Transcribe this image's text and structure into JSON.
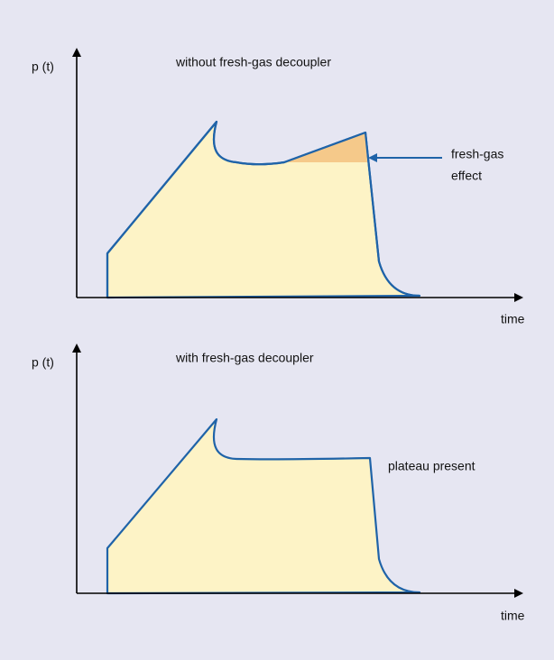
{
  "panels": [
    {
      "y_label": "p (t)",
      "title": "without fresh-gas decoupler",
      "x_label": "time",
      "annotation": [
        "fresh-gas",
        "effect"
      ]
    },
    {
      "y_label": "p (t)",
      "title": "with fresh-gas decoupler",
      "x_label": "time",
      "annotation": [
        "plateau present"
      ]
    }
  ]
}
